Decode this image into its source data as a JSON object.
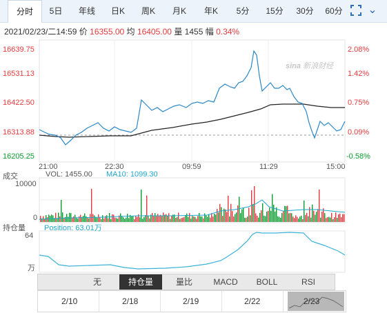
{
  "tabs": [
    {
      "label": "分时",
      "active": true
    },
    {
      "label": "5日"
    },
    {
      "label": "年线"
    },
    {
      "label": "日K"
    },
    {
      "label": "周K"
    },
    {
      "label": "月K"
    },
    {
      "label": "年K"
    },
    {
      "label": "5分"
    },
    {
      "label": "15分"
    },
    {
      "label": "30分"
    },
    {
      "label": "60分"
    }
  ],
  "info": {
    "datetime": "2021/02/23/二14:59",
    "price_label": "价",
    "price": "16355.00",
    "avg_label": "均",
    "avg": "16405.00",
    "vol_label": "量",
    "vol": "1455",
    "change_label": "幅",
    "change": "0.34%"
  },
  "price_axis": [
    "16639.75",
    "16531.13",
    "16422.50",
    "16313.88",
    "16205.25"
  ],
  "pct_axis": [
    "2.08%",
    "1.42%",
    "0.75%",
    "0.09%",
    "-0.58%"
  ],
  "time_axis": [
    "21:00",
    "22:30",
    "09:59",
    "11:29",
    "15:00"
  ],
  "volume": {
    "label": "成交",
    "vol_text": "VOL: 1455.00",
    "ma_text": "MA10: 1099.30",
    "max": "10000",
    "zero": "0"
  },
  "position": {
    "label": "持仓量",
    "pos_text": "Position: 63.01万",
    "max": "64",
    "unit": "万"
  },
  "logo_text": "新浪财经",
  "indicators": [
    {
      "label": "无"
    },
    {
      "label": "持仓量",
      "active": true
    },
    {
      "label": "量比"
    },
    {
      "label": "MACD"
    },
    {
      "label": "BOLL"
    },
    {
      "label": "RSI"
    }
  ],
  "arrows": {
    "up": "▲",
    "down": "▼"
  },
  "dates": [
    "2/10",
    "2/18",
    "2/19",
    "2/22",
    "2/23"
  ],
  "colors": {
    "price_line": "#2a87c8",
    "avg_line": "#222222",
    "up": "#e4393c",
    "down": "#0a9a2e",
    "position_line": "#3ab3d8",
    "ma_line": "#1fa7c9"
  }
}
